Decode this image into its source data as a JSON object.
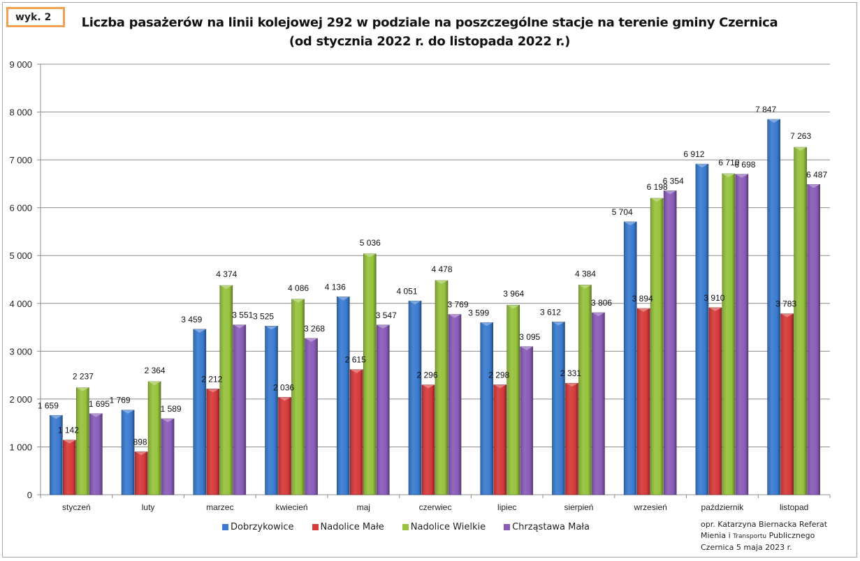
{
  "figure_tag": "wyk. 2",
  "credit": {
    "line1": "opr. Katarzyna Biernacka Referat",
    "line2_a": "Mienia i ",
    "line2_b": "Transportu",
    "line2_c": " Publicznego",
    "line3": "Czernica 5 maja 2023 r."
  },
  "chart_data": {
    "type": "bar",
    "title": "Liczba pasażerów na linii kolejowej 292 w podziale na poszczególne stacje na terenie gminy Czernica",
    "subtitle": "(od stycznia 2022 r. do listopada 2022 r.)",
    "xlabel": "",
    "ylabel": "",
    "ylim": [
      0,
      9000
    ],
    "yticks": [
      0,
      1000,
      2000,
      3000,
      4000,
      5000,
      6000,
      7000,
      8000,
      9000
    ],
    "ytick_labels": [
      "0",
      "1 000",
      "2 000",
      "3 000",
      "4 000",
      "5 000",
      "6 000",
      "7 000",
      "8 000",
      "9 000"
    ],
    "grid": true,
    "legend_position": "bottom",
    "categories": [
      "styczeń",
      "luty",
      "marzec",
      "kwiecień",
      "maj",
      "czerwiec",
      "lipiec",
      "sierpień",
      "wrzesień",
      "październik",
      "listopad"
    ],
    "series": [
      {
        "name": "Dobrzykowice",
        "color": "#3a7bd0",
        "values": [
          1659,
          1769,
          3459,
          3525,
          4136,
          4051,
          3599,
          3612,
          5704,
          6912,
          7847
        ]
      },
      {
        "name": "Nadolice Małe",
        "color": "#d63a3a",
        "values": [
          1142,
          898,
          2212,
          2036,
          2615,
          2296,
          2298,
          2331,
          3894,
          3910,
          3783
        ]
      },
      {
        "name": "Nadolice Wielkie",
        "color": "#96c23c",
        "values": [
          2237,
          2364,
          4374,
          4086,
          5036,
          4478,
          3964,
          4384,
          6198,
          6710,
          7263
        ]
      },
      {
        "name": "Chrząstawa Mała",
        "color": "#8a5cb8",
        "values": [
          1695,
          1589,
          3551,
          3268,
          3547,
          3769,
          3095,
          3806,
          6354,
          6698,
          6487
        ]
      }
    ],
    "data_labels": [
      [
        "1 659",
        "1 769",
        "3 459",
        "3 525",
        "4 136",
        "4 051",
        "3 599",
        "3 612",
        "5 704",
        "6 912",
        "7 847"
      ],
      [
        "1 142",
        "898",
        "2 212",
        "2 036",
        "2 615",
        "2 296",
        "2 298",
        "2 331",
        "3 894",
        "3 910",
        "3 783"
      ],
      [
        "2 237",
        "2 364",
        "4 374",
        "4 086",
        "5 036",
        "4 478",
        "3 964",
        "4 384",
        "6 198",
        "6 710",
        "7 263"
      ],
      [
        "1 695",
        "1 589",
        "3 551",
        "3 268",
        "3 547",
        "3 769",
        "3 095",
        "3 806",
        "6 354",
        "6 698",
        "6 487"
      ]
    ]
  }
}
